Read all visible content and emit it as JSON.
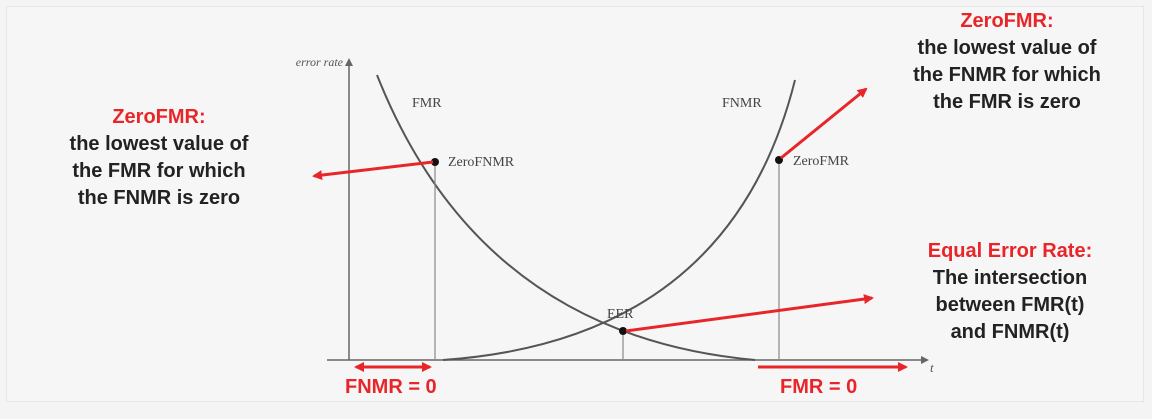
{
  "axes": {
    "y_label": "error rate",
    "x_label": "t"
  },
  "curves": {
    "fmr_label": "FMR",
    "fnmr_label": "FNMR"
  },
  "points": {
    "zero_fnmr": "ZeroFNMR",
    "zero_fmr": "ZeroFMR",
    "eer": "EER"
  },
  "annotations": {
    "left": {
      "title": "ZeroFMR:",
      "lines": [
        "the lowest value of",
        "the FMR for which",
        "the FNMR is zero"
      ]
    },
    "top_right": {
      "title": "ZeroFMR:",
      "lines": [
        "the lowest value of",
        "the FNMR for which",
        "the FMR is zero"
      ]
    },
    "bottom_right": {
      "title": "Equal Error Rate:",
      "lines": [
        "The intersection",
        "between FMR(t)",
        "and FNMR(t)"
      ]
    }
  },
  "bottom_labels": {
    "fnmr_zero": "FNMR = 0",
    "fmr_zero": "FMR = 0"
  },
  "colors": {
    "accent_red": "#e8262a",
    "curve": "#555555",
    "axis": "#666666",
    "text_dark": "#222222"
  }
}
